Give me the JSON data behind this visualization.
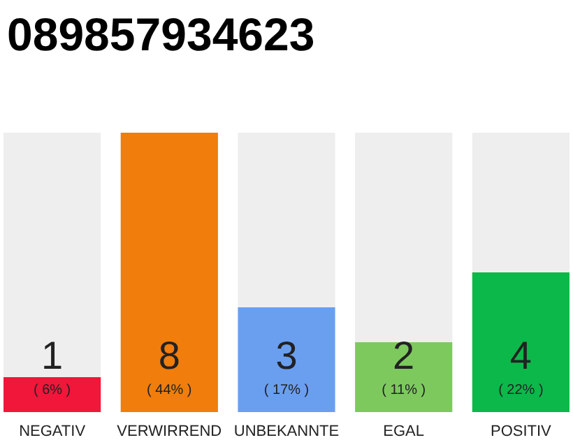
{
  "chart_data": {
    "type": "bar",
    "title": "089857934623",
    "categories": [
      "NEGATIV",
      "VERWIRREND",
      "UNBEKANNTE",
      "EGAL",
      "POSITIV"
    ],
    "values": [
      1,
      8,
      3,
      2,
      4
    ],
    "colors": [
      "#f0173a",
      "#f07d0c",
      "#6a9ff0",
      "#7dc95e",
      "#0cb84a"
    ],
    "data_labels": true,
    "annotations": [
      "( 6% )",
      "( 44% )",
      "( 17% )",
      "( 11% )",
      "( 22% )"
    ]
  }
}
